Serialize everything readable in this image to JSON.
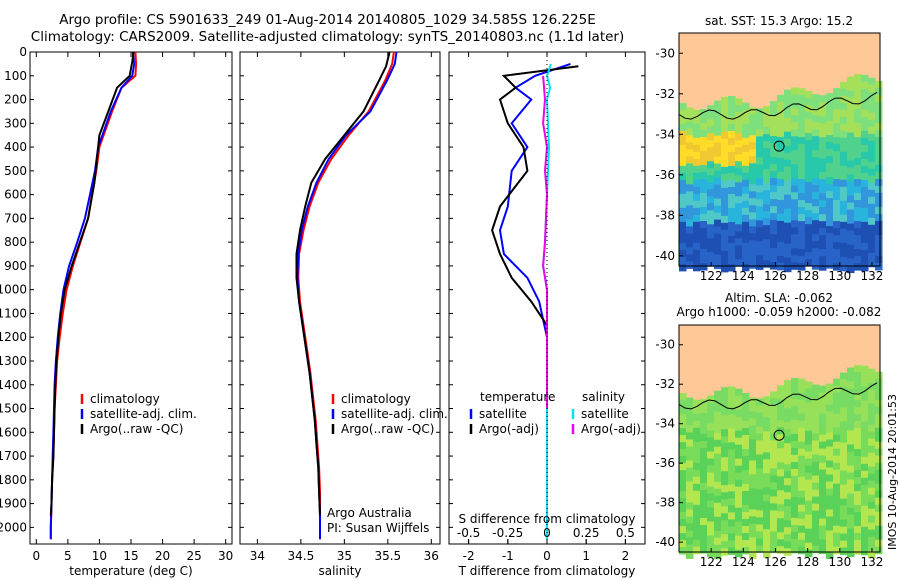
{
  "header": {
    "title_line1": "Argo profile: CS 5901633_249 01-Aug-2014 20140805_1029 34.585S 126.225E",
    "title_line2": "Climatology: CARS2009. Satellite-adjusted climatology: synTS_20140803.nc (1.1d later)"
  },
  "colors": {
    "climatology": "#ff0000",
    "satellite": "#0000ff",
    "argo": "#000000",
    "satellite_salt": "#00e0f0",
    "argo_salt": "#ee00ee"
  },
  "chart_data": [
    {
      "type": "line",
      "name": "temperature",
      "xlabel": "temperature (deg C)",
      "ylabel": "",
      "xlim": [
        -1,
        31
      ],
      "ylim": [
        2070,
        0
      ],
      "xticks": [
        0,
        5,
        10,
        15,
        20,
        25,
        30
      ],
      "yticks": [
        0,
        100,
        200,
        300,
        400,
        500,
        600,
        700,
        800,
        900,
        1000,
        1100,
        1200,
        1300,
        1400,
        1500,
        1600,
        1700,
        1800,
        1900,
        2000
      ],
      "legend": [
        "climatology",
        "satellite-adj. clim.",
        "Argo(..raw -QC)"
      ],
      "series": [
        {
          "name": "climatology",
          "color": "#ff0000",
          "points": [
            [
              15.7,
              0
            ],
            [
              15.8,
              50
            ],
            [
              15.7,
              100
            ],
            [
              13.5,
              150
            ],
            [
              12,
              250
            ],
            [
              10,
              400
            ],
            [
              9.5,
              500
            ],
            [
              8.8,
              600
            ],
            [
              8.2,
              700
            ],
            [
              7,
              800
            ],
            [
              5.8,
              900
            ],
            [
              4.8,
              1000
            ],
            [
              4.2,
              1100
            ],
            [
              3.7,
              1200
            ],
            [
              3.3,
              1300
            ],
            [
              3.1,
              1400
            ],
            [
              2.9,
              1500
            ],
            [
              2.8,
              1600
            ],
            [
              2.7,
              1700
            ],
            [
              2.5,
              1800
            ],
            [
              2.4,
              1900
            ],
            [
              2.3,
              2000
            ],
            [
              2.3,
              2050
            ]
          ]
        },
        {
          "name": "satellite",
          "color": "#0000ff",
          "points": [
            [
              15.3,
              0
            ],
            [
              15.5,
              50
            ],
            [
              15.2,
              100
            ],
            [
              13.5,
              150
            ],
            [
              11.8,
              250
            ],
            [
              9.8,
              400
            ],
            [
              9.3,
              500
            ],
            [
              8.5,
              600
            ],
            [
              7.7,
              700
            ],
            [
              6.5,
              800
            ],
            [
              5.2,
              900
            ],
            [
              4.3,
              1000
            ],
            [
              3.8,
              1100
            ],
            [
              3.4,
              1200
            ],
            [
              3.1,
              1300
            ],
            [
              2.9,
              1400
            ],
            [
              2.8,
              1500
            ],
            [
              2.7,
              1600
            ],
            [
              2.6,
              1700
            ],
            [
              2.5,
              1800
            ],
            [
              2.4,
              1900
            ],
            [
              2.3,
              2000
            ],
            [
              2.3,
              2050
            ]
          ]
        },
        {
          "name": "Argo",
          "color": "#000000",
          "points": [
            [
              15.4,
              0
            ],
            [
              15.2,
              40
            ],
            [
              14.8,
              100
            ],
            [
              12.8,
              150
            ],
            [
              11.4,
              250
            ],
            [
              10,
              350
            ],
            [
              9.6,
              450
            ],
            [
              9.2,
              550
            ],
            [
              8.2,
              700
            ],
            [
              6.9,
              800
            ],
            [
              5.6,
              900
            ],
            [
              4.5,
              1000
            ],
            [
              3.9,
              1100
            ],
            [
              3.5,
              1200
            ],
            [
              3.2,
              1300
            ],
            [
              3,
              1400
            ],
            [
              2.9,
              1500
            ],
            [
              2.8,
              1600
            ],
            [
              2.7,
              1700
            ],
            [
              2.5,
              1800
            ],
            [
              2.4,
              1900
            ],
            [
              2.3,
              1950
            ]
          ]
        }
      ]
    },
    {
      "type": "line",
      "name": "salinity",
      "xlabel": "salinity",
      "xlim": [
        33.8,
        36.1
      ],
      "ylim": [
        2070,
        0
      ],
      "xticks": [
        34,
        34.5,
        35,
        35.5,
        36
      ],
      "legend": [
        "climatology",
        "satellite-adj. clim.",
        "Argo(..raw -QC)"
      ],
      "annotation": [
        "Argo Australia",
        "PI: Susan Wijffels"
      ],
      "series": [
        {
          "name": "climatology",
          "color": "#ff0000",
          "points": [
            [
              35.57,
              0
            ],
            [
              35.55,
              50
            ],
            [
              35.47,
              120
            ],
            [
              35.28,
              250
            ],
            [
              35.05,
              350
            ],
            [
              34.85,
              450
            ],
            [
              34.7,
              550
            ],
            [
              34.6,
              650
            ],
            [
              34.53,
              750
            ],
            [
              34.48,
              850
            ],
            [
              34.47,
              950
            ],
            [
              34.49,
              1050
            ],
            [
              34.53,
              1150
            ],
            [
              34.57,
              1250
            ],
            [
              34.61,
              1350
            ],
            [
              34.64,
              1450
            ],
            [
              34.67,
              1550
            ],
            [
              34.69,
              1650
            ],
            [
              34.71,
              1750
            ],
            [
              34.72,
              1850
            ],
            [
              34.72,
              1950
            ],
            [
              34.72,
              2050
            ]
          ]
        },
        {
          "name": "satellite",
          "color": "#0000ff",
          "points": [
            [
              35.6,
              0
            ],
            [
              35.58,
              50
            ],
            [
              35.49,
              120
            ],
            [
              35.3,
              250
            ],
            [
              35.02,
              350
            ],
            [
              34.82,
              450
            ],
            [
              34.68,
              550
            ],
            [
              34.58,
              650
            ],
            [
              34.51,
              750
            ],
            [
              34.47,
              850
            ],
            [
              34.46,
              950
            ],
            [
              34.48,
              1050
            ],
            [
              34.52,
              1150
            ],
            [
              34.56,
              1250
            ],
            [
              34.6,
              1350
            ],
            [
              34.63,
              1450
            ],
            [
              34.66,
              1550
            ],
            [
              34.68,
              1650
            ],
            [
              34.7,
              1750
            ],
            [
              34.71,
              1850
            ],
            [
              34.72,
              1950
            ],
            [
              34.72,
              2050
            ]
          ]
        },
        {
          "name": "Argo",
          "color": "#000000",
          "points": [
            [
              35.52,
              0
            ],
            [
              35.48,
              60
            ],
            [
              35.4,
              120
            ],
            [
              35.22,
              250
            ],
            [
              35.0,
              350
            ],
            [
              34.78,
              450
            ],
            [
              34.62,
              550
            ],
            [
              34.55,
              650
            ],
            [
              34.49,
              750
            ],
            [
              34.45,
              850
            ],
            [
              34.45,
              950
            ],
            [
              34.48,
              1050
            ],
            [
              34.52,
              1150
            ],
            [
              34.56,
              1250
            ],
            [
              34.6,
              1350
            ],
            [
              34.63,
              1450
            ],
            [
              34.66,
              1550
            ],
            [
              34.68,
              1650
            ],
            [
              34.7,
              1750
            ],
            [
              34.71,
              1850
            ],
            [
              34.72,
              1950
            ]
          ]
        }
      ]
    },
    {
      "type": "line",
      "name": "differences",
      "xlabel": "T difference from climatology",
      "xlabel_top": "S difference from climatology",
      "xlim": [
        -2.5,
        2.5
      ],
      "ylim": [
        2070,
        0
      ],
      "xticks": [
        -2,
        -1,
        0,
        1,
        2
      ],
      "sticks": [
        -0.5,
        -0.25,
        0,
        0.25,
        0.5
      ],
      "legend_titles": [
        "temperature",
        "salinity"
      ],
      "legend": [
        "satellite",
        "Argo(-adj)",
        "satellite",
        "Argo(-adj)"
      ],
      "series": [
        {
          "name": "T satellite",
          "color": "#0000ff",
          "points": [
            [
              0.6,
              50
            ],
            [
              -0.3,
              100
            ],
            [
              -0.8,
              150
            ],
            [
              -0.4,
              200
            ],
            [
              -0.9,
              300
            ],
            [
              -0.5,
              400
            ],
            [
              -0.9,
              500
            ],
            [
              -1.0,
              650
            ],
            [
              -1.2,
              750
            ],
            [
              -1.1,
              850
            ],
            [
              -0.5,
              950
            ],
            [
              -0.2,
              1050
            ],
            [
              0,
              1200
            ],
            [
              0,
              1400
            ],
            [
              0,
              1600
            ],
            [
              0,
              1800
            ],
            [
              0,
              2000
            ],
            [
              0,
              2050
            ]
          ]
        },
        {
          "name": "T Argo",
          "color": "#000000",
          "points": [
            [
              0.8,
              60
            ],
            [
              -1.1,
              100
            ],
            [
              -0.8,
              150
            ],
            [
              -1.2,
              200
            ],
            [
              -1.0,
              300
            ],
            [
              -0.6,
              400
            ],
            [
              -0.5,
              500
            ],
            [
              -1.2,
              650
            ],
            [
              -1.4,
              750
            ],
            [
              -1.2,
              850
            ],
            [
              -0.9,
              950
            ],
            [
              -0.4,
              1050
            ],
            [
              0,
              1150
            ],
            [
              0,
              1300
            ],
            [
              0,
              1500
            ],
            [
              0,
              1700
            ],
            [
              0,
              1950
            ]
          ]
        },
        {
          "name": "S satellite",
          "color": "#00e0f0",
          "points": [
            [
              0.1,
              50
            ],
            [
              0,
              100
            ],
            [
              0.08,
              150
            ],
            [
              0,
              200
            ],
            [
              0.05,
              400
            ],
            [
              0,
              600
            ],
            [
              -0.05,
              800
            ],
            [
              -0.1,
              900
            ],
            [
              0,
              1000
            ],
            [
              0,
              1100
            ],
            [
              0,
              1300
            ],
            [
              0,
              1500
            ],
            [
              0,
              1700
            ],
            [
              0,
              1900
            ],
            [
              0,
              2050
            ]
          ]
        },
        {
          "name": "S Argo",
          "color": "#ee00ee",
          "points": [
            [
              -0.1,
              100
            ],
            [
              -0.05,
              200
            ],
            [
              -0.1,
              300
            ],
            [
              0,
              400
            ],
            [
              -0.05,
              500
            ],
            [
              0,
              600
            ],
            [
              -0.05,
              800
            ],
            [
              -0.1,
              900
            ],
            [
              0,
              1000
            ],
            [
              0,
              1200
            ],
            [
              0,
              1400
            ],
            [
              0,
              1500
            ]
          ]
        }
      ]
    },
    {
      "type": "heatmap",
      "name": "sst_map",
      "title": "sat. SST: 15.3 Argo: 15.2",
      "xticks": [
        122,
        124,
        126,
        128,
        130,
        132
      ],
      "yticks": [
        -30,
        -32,
        -34,
        -36,
        -38,
        -40
      ],
      "xlim": [
        120,
        132.5
      ],
      "ylim": [
        -40.5,
        -29
      ]
    },
    {
      "type": "heatmap",
      "name": "sla_map",
      "title_line1": "Altim. SLA: -0.062",
      "title_line2": "Argo h1000: -0.059 h2000: -0.082",
      "xticks": [
        122,
        124,
        126,
        128,
        130,
        132
      ],
      "yticks": [
        -30,
        -32,
        -34,
        -36,
        -38,
        -40
      ],
      "xlim": [
        120,
        132.5
      ],
      "ylim": [
        -40.5,
        -29
      ]
    }
  ],
  "stamp": "IMOS 10-Aug-2014 20:01:53"
}
